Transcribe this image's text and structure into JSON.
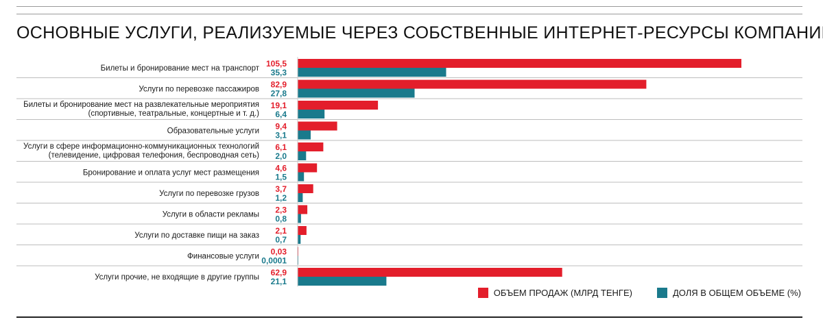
{
  "title": "ОСНОВНЫЕ УСЛУГИ, РЕАЛИЗУЕМЫЕ ЧЕРЕЗ СОБСТВЕННЫЕ ИНТЕРНЕТ-РЕСУРСЫ КОМПАНИЙ",
  "colors": {
    "sales": "#e31e2b",
    "share": "#1a7a8c",
    "rowline": "#bdbdbd",
    "text": "#1a1a1a"
  },
  "legend": {
    "sales": "ОБЪЕМ ПРОДАЖ (МЛРД ТЕНГЕ)",
    "share": "ДОЛЯ В ОБЩЕМ ОБЪЕМЕ (%)"
  },
  "chart_data": {
    "type": "bar",
    "orientation": "horizontal",
    "categories": [
      [
        "Билеты и бронирование мест на транспорт"
      ],
      [
        "Услуги по перевозке пассажиров"
      ],
      [
        "Билеты и бронирование мест на развлекательные мероприятия",
        "(спортивные, театральные, концертные и т. д.)"
      ],
      [
        "Образовательные услуги"
      ],
      [
        "Услуги в сфере информационно-коммуникационных технологий",
        "(телевидение, цифровая телефония, беспроводная сеть)"
      ],
      [
        "Бронирование и оплата услуг мест размещения"
      ],
      [
        "Услуги по перевозке грузов"
      ],
      [
        "Услуги в области рекламы"
      ],
      [
        "Услуги по доставке пищи на заказ"
      ],
      [
        "Финансовые услуги"
      ],
      [
        "Услуги прочие, не входящие в другие группы"
      ]
    ],
    "series": [
      {
        "name": "ОБЪЕМ ПРОДАЖ (МЛРД ТЕНГЕ)",
        "values": [
          105.5,
          82.9,
          19.1,
          9.4,
          6.1,
          4.6,
          3.7,
          2.3,
          2.1,
          0.03,
          62.9
        ],
        "labels": [
          "105,5",
          "82,9",
          "19,1",
          "9,4",
          "6,1",
          "4,6",
          "3,7",
          "2,3",
          "2,1",
          "0,03",
          "62,9"
        ]
      },
      {
        "name": "ДОЛЯ В ОБЩЕМ ОБЪЕМЕ (%)",
        "values": [
          35.3,
          27.8,
          6.4,
          3.1,
          2.0,
          1.5,
          1.2,
          0.8,
          0.7,
          0.0001,
          21.1
        ],
        "labels": [
          "35,3",
          "27,8",
          "6,4",
          "3,1",
          "2,0",
          "1,5",
          "1,2",
          "0,8",
          "0,7",
          "0,0001",
          "21,1"
        ]
      }
    ],
    "xlim": [
      0,
      105.5
    ],
    "grid": false,
    "legend_position": "bottom-right"
  }
}
